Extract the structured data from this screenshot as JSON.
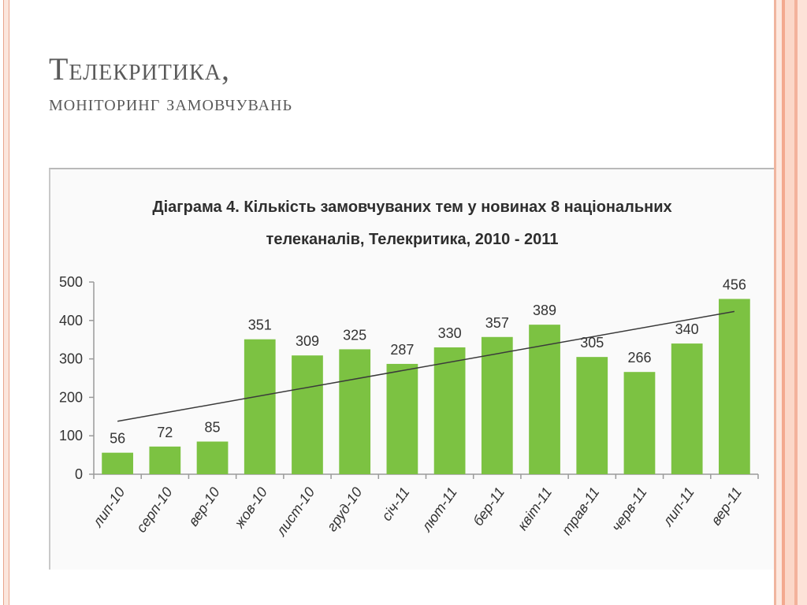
{
  "slide": {
    "title": "Телекритика,",
    "subtitle": "моніторинг замовчувань"
  },
  "colors": {
    "bar": "#7cc242",
    "trend": "#3a3a3a",
    "accent": "#f0b59f"
  },
  "chart_data": {
    "type": "bar",
    "title_line1": "Діаграма 4. Кількість замовчуваних тем у новинах 8 національних",
    "title_line2": "телеканалів, Телекритика, 2010 - 2011",
    "categories": [
      "лип-10",
      "серп-10",
      "вер-10",
      "жов-10",
      "лист-10",
      "груд-10",
      "січ-11",
      "лют-11",
      "бер-11",
      "квіт-11",
      "трав-11",
      "черв-11",
      "лип-11",
      "вер-11"
    ],
    "values": [
      56,
      72,
      85,
      351,
      309,
      325,
      287,
      330,
      357,
      389,
      305,
      266,
      340,
      456
    ],
    "yticks": [
      0,
      100,
      200,
      300,
      400,
      500
    ],
    "ylim": [
      0,
      500
    ],
    "trendline": "linear",
    "grid": false,
    "legend": "none"
  }
}
